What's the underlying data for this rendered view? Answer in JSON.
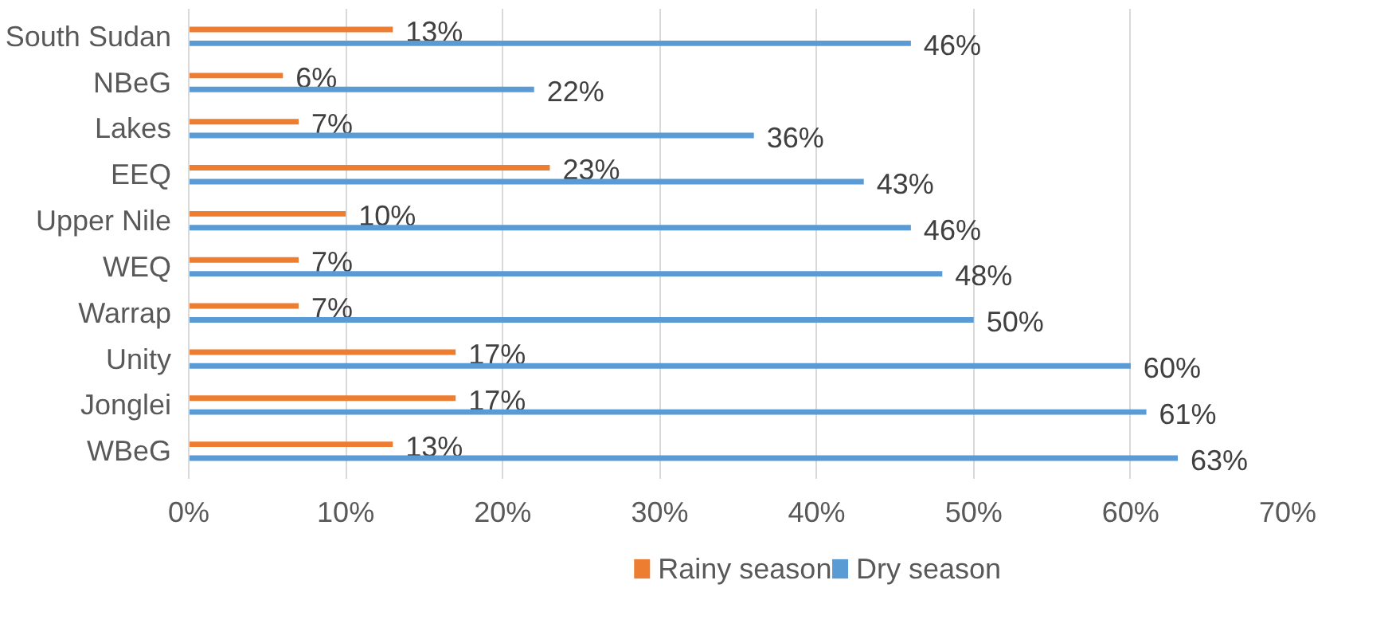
{
  "chart_data": {
    "type": "bar",
    "orientation": "horizontal",
    "categories": [
      "South Sudan",
      "NBeG",
      "Lakes",
      "EEQ",
      "Upper Nile",
      "WEQ",
      "Warrap",
      "Unity",
      "Jonglei",
      "WBeG"
    ],
    "series": [
      {
        "name": "Rainy season",
        "color": "#ed7d31",
        "values": [
          13,
          6,
          7,
          23,
          10,
          7,
          7,
          17,
          17,
          13
        ],
        "value_labels": [
          "13%",
          "6%",
          "7%",
          "23%",
          "10%",
          "7%",
          "7%",
          "17%",
          "17%",
          "13%"
        ]
      },
      {
        "name": "Dry season",
        "color": "#5b9bd5",
        "values": [
          46,
          22,
          36,
          43,
          46,
          48,
          50,
          60,
          61,
          63
        ],
        "value_labels": [
          "46%",
          "22%",
          "36%",
          "43%",
          "46%",
          "48%",
          "50%",
          "60%",
          "61%",
          "63%"
        ]
      }
    ],
    "xlim": [
      0,
      70
    ],
    "xticks": [
      {
        "value": 0,
        "label": "0%"
      },
      {
        "value": 10,
        "label": "10%"
      },
      {
        "value": 20,
        "label": "20%"
      },
      {
        "value": 30,
        "label": "30%"
      },
      {
        "value": 40,
        "label": "40%"
      },
      {
        "value": 50,
        "label": "50%"
      },
      {
        "value": 60,
        "label": "60%"
      },
      {
        "value": 70,
        "label": "70%"
      }
    ],
    "grid": "x",
    "legend": "bottom"
  }
}
